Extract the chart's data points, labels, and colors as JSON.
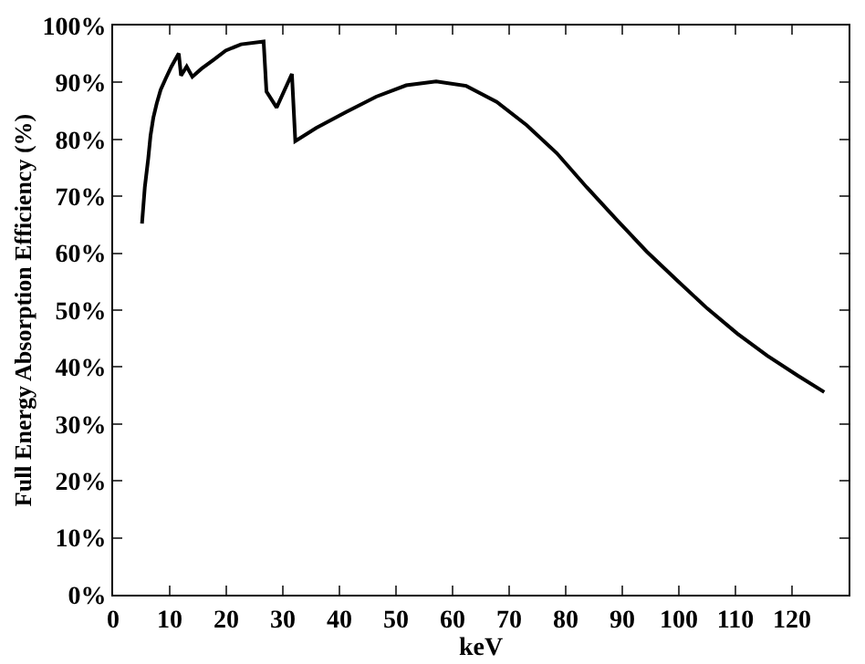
{
  "chart_data": {
    "type": "line",
    "xlabel": "keV",
    "ylabel": "Full Energy Absorption Efficiency (%)",
    "x": [
      5.1,
      5.6,
      6.2,
      6.6,
      7.1,
      7.7,
      8.4,
      9.3,
      10.3,
      11.6,
      12.0,
      13,
      14,
      15.6,
      17.8,
      19.9,
      22.6,
      26.6,
      27.1,
      28.9,
      31.6,
      32.2,
      35.9,
      41.2,
      46.5,
      51.8,
      57.1,
      62.4,
      67.8,
      73.1,
      78.4,
      83.7,
      89,
      94.3,
      99.7,
      105,
      110.3,
      115.6,
      121,
      125.7
    ],
    "series": [
      {
        "color": "#000000",
        "values": [
          65.2,
          71.6,
          76.6,
          80.6,
          83.8,
          86.3,
          88.7,
          90.7,
          92.8,
          95.1,
          91.2,
          92.8,
          91,
          92.4,
          94,
          95.6,
          96.7,
          97.2,
          88.4,
          85.6,
          91.5,
          79.7,
          82,
          84.8,
          87.5,
          89.5,
          90.2,
          89.4,
          86.6,
          82.5,
          77.6,
          71.6,
          65.9,
          60.3,
          55.2,
          50.3,
          45.9,
          42,
          38.5,
          35.6
        ]
      }
    ],
    "xlim": [
      0,
      130
    ],
    "xticks": [
      0,
      10,
      20,
      30,
      40,
      50,
      60,
      70,
      80,
      90,
      100,
      110,
      120
    ],
    "ylim": [
      0,
      100
    ],
    "yticks": [
      {
        "value": 0,
        "label": "0%"
      },
      {
        "value": 10,
        "label": "10%"
      },
      {
        "value": 20,
        "label": "20%"
      },
      {
        "value": 30,
        "label": "30%"
      },
      {
        "value": 40,
        "label": "40%"
      },
      {
        "value": 50,
        "label": "50%"
      },
      {
        "value": 60,
        "label": "60%"
      },
      {
        "value": 70,
        "label": "70%"
      },
      {
        "value": 80,
        "label": "80%"
      },
      {
        "value": 90,
        "label": "90%"
      },
      {
        "value": 100,
        "label": "100%"
      }
    ],
    "grid": false,
    "line_style": "solid"
  }
}
